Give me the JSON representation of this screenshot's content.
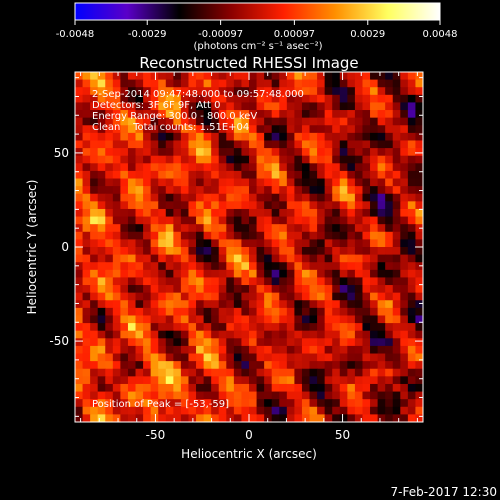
{
  "colorbar": {
    "ticks": [
      "-0.0048",
      "-0.0029",
      "-0.00097",
      "0.00097",
      "0.0029",
      "0.0048"
    ],
    "tick_values": [
      -0.0048,
      -0.0029,
      -0.00097,
      0.00097,
      0.0029,
      0.0048
    ],
    "range": [
      -0.0048,
      0.0048
    ],
    "units": "(photons cm⁻² s⁻¹ asec⁻²)",
    "colormap": [
      "#0000ff",
      "#5a00c8",
      "#000000",
      "#8c0000",
      "#ff2000",
      "#ff9000",
      "#ffff60",
      "#ffffff"
    ]
  },
  "chart_data": {
    "type": "heatmap",
    "title": "Reconstructed RHESSI Image",
    "xlabel": "Heliocentric X (arcsec)",
    "ylabel": "Heliocentric Y (arcsec)",
    "xlim": [
      -93,
      93
    ],
    "ylim": [
      -93,
      93
    ],
    "xticks": [
      -50,
      0,
      50
    ],
    "yticks": [
      -50,
      0,
      50
    ],
    "xtick_labels": [
      "-50",
      "0",
      "50"
    ],
    "ytick_labels": [
      "-50",
      "0",
      "50"
    ],
    "annotations": [
      "2-Sep-2014 09:47:48.000 to 09:57:48.000",
      "Detectors: 3F 6F 9F, Att 0",
      "Energy Range: 300.0 - 800.0 keV",
      "Clean    Total counts: 1.51E+04"
    ],
    "peak_label": "Position of Peak = [-53,-59]",
    "peak": [
      -53,
      -59
    ]
  },
  "footer": {
    "timestamp": "7-Feb-2017 12:30"
  }
}
